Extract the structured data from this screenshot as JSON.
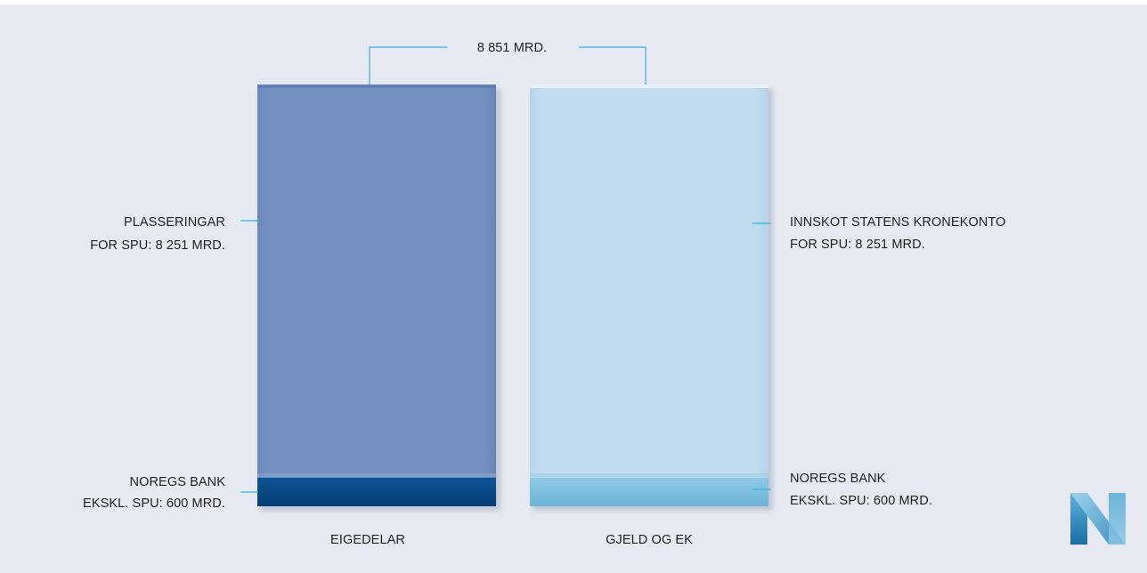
{
  "chart_data": {
    "type": "bar",
    "stacked": true,
    "categories": [
      "EIGEDELAR",
      "GJELD OG EK"
    ],
    "total": 8851,
    "total_label": "8 851 MRD.",
    "unit": "MRD.",
    "series": [
      {
        "values": [
          8251,
          8251
        ],
        "colors": [
          "#7591c1",
          "#c0dbee"
        ],
        "labels": [
          [
            "PLASSERINGAR",
            "FOR SPU: 8 251 MRD."
          ],
          [
            "INNSKOT STATENS KRONEKONTO",
            "FOR SPU: 8 251 MRD."
          ]
        ]
      },
      {
        "values": [
          600,
          600
        ],
        "colors": [
          "#0a4f8e",
          "#7dbede"
        ],
        "labels": [
          [
            "NOREGS BANK",
            "EKSKL. SPU: 600 MRD."
          ],
          [
            "NOREGS BANK",
            "EKSKL. SPU: 600 MRD."
          ]
        ]
      }
    ]
  },
  "colors": {
    "background": "#e6e9f1",
    "leader_line": "#3ab1dd",
    "text": "#222222"
  },
  "logo": {
    "icon": "norges-bank-n-logo"
  }
}
